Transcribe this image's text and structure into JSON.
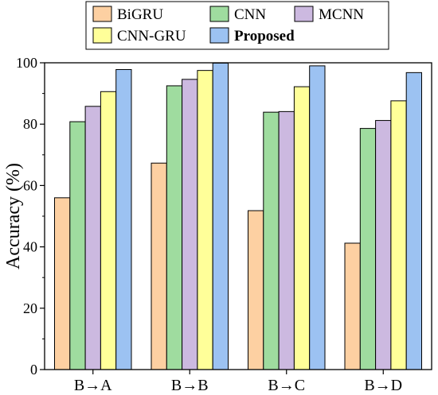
{
  "chart_data": {
    "type": "bar",
    "title": "",
    "xlabel": "",
    "ylabel": "Accuracy (%)",
    "ylim": [
      0,
      100
    ],
    "yticks": [
      0,
      20,
      40,
      60,
      80,
      100
    ],
    "grid": false,
    "legend_position": "top",
    "categories": [
      "B→A",
      "B→B",
      "B→C",
      "B→D"
    ],
    "series": [
      {
        "name": "BiGRU",
        "color": "#fdd0a2",
        "values": [
          56.0,
          67.3,
          51.8,
          41.2
        ]
      },
      {
        "name": "CNN",
        "color": "#9fdc9f",
        "values": [
          80.8,
          92.5,
          83.9,
          78.6
        ]
      },
      {
        "name": "MCNN",
        "color": "#ccb9e0",
        "values": [
          85.8,
          94.6,
          84.1,
          81.2
        ]
      },
      {
        "name": "CNN-GRU",
        "color": "#ffff99",
        "values": [
          90.6,
          97.5,
          92.2,
          87.6
        ]
      },
      {
        "name": "Proposed",
        "color": "#9cc2f2",
        "values": [
          97.8,
          99.9,
          99.0,
          96.8
        ],
        "bold": true
      }
    ]
  }
}
